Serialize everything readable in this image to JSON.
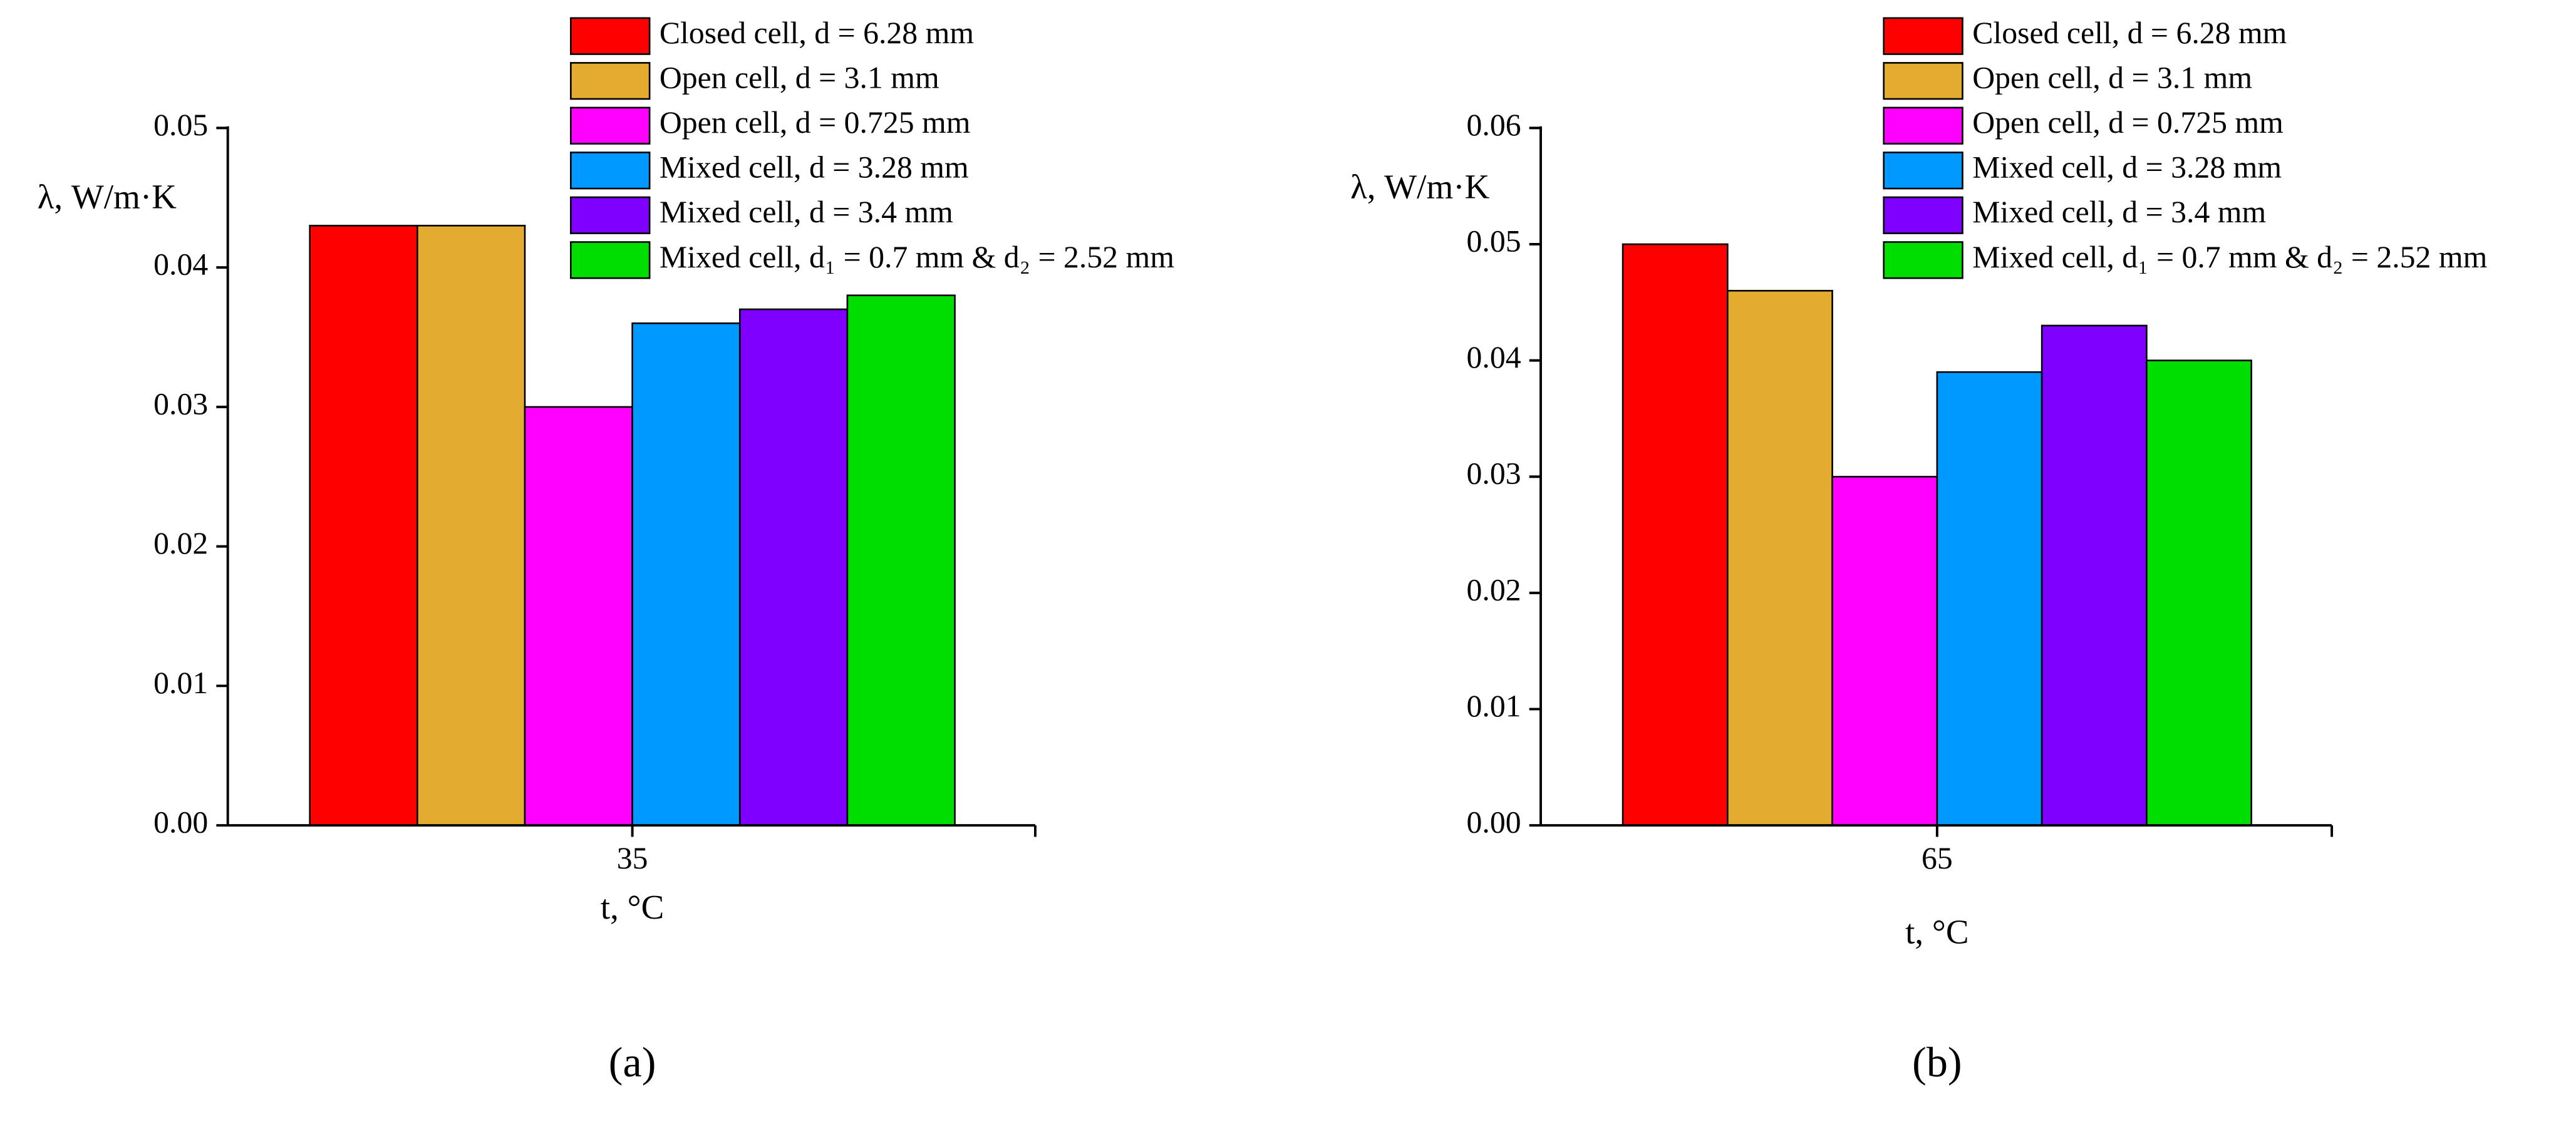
{
  "chart_data": [
    {
      "type": "bar",
      "panel_label": "(a)",
      "xlabel": "t, °C",
      "ylabel": "λ, W/m·K",
      "categories": [
        "35"
      ],
      "series": [
        {
          "name": "Closed cell, d = 6.28 mm",
          "color": "#ff0000",
          "values": [
            0.043
          ]
        },
        {
          "name": "Open cell, d = 3.1 mm",
          "color": "#e3ab30",
          "values": [
            0.043
          ]
        },
        {
          "name": "Open cell, d = 0.725 mm",
          "color": "#ff00ff",
          "values": [
            0.03
          ]
        },
        {
          "name": "Mixed cell, d = 3.28 mm",
          "color": "#0099ff",
          "values": [
            0.036
          ]
        },
        {
          "name": "Mixed cell, d = 3.4 mm",
          "color": "#8000ff",
          "values": [
            0.037
          ]
        },
        {
          "name": "Mixed cell, d₁ = 0.7 mm & d₂ = 2.52 mm",
          "color": "#00dd00",
          "values": [
            0.038
          ]
        }
      ],
      "ylim": [
        0,
        0.05
      ],
      "yticks": [
        {
          "value": 0,
          "label": "0.00"
        },
        0.01,
        0.02,
        0.03,
        0.04,
        0.05
      ]
    },
    {
      "type": "bar",
      "panel_label": "(b)",
      "xlabel": "t, °C",
      "ylabel": "λ, W/m·K",
      "categories": [
        "65"
      ],
      "series": [
        {
          "name": "Closed cell, d = 6.28 mm",
          "color": "#ff0000",
          "values": [
            0.05
          ]
        },
        {
          "name": "Open cell, d = 3.1 mm",
          "color": "#e3ab30",
          "values": [
            0.046
          ]
        },
        {
          "name": "Open cell, d = 0.725 mm",
          "color": "#ff00ff",
          "values": [
            0.03
          ]
        },
        {
          "name": "Mixed cell, d = 3.28 mm",
          "color": "#0099ff",
          "values": [
            0.039
          ]
        },
        {
          "name": "Mixed cell, d = 3.4 mm",
          "color": "#8000ff",
          "values": [
            0.043
          ]
        },
        {
          "name": "Mixed cell, d₁ = 0.7 mm & d₂ = 2.52 mm",
          "color": "#00dd00",
          "values": [
            0.04
          ]
        }
      ],
      "ylim": [
        0,
        0.06
      ],
      "yticks": [
        {
          "value": 0,
          "label": "0.00"
        },
        0.01,
        0.02,
        0.03,
        0.04,
        0.05,
        0.06
      ]
    }
  ]
}
